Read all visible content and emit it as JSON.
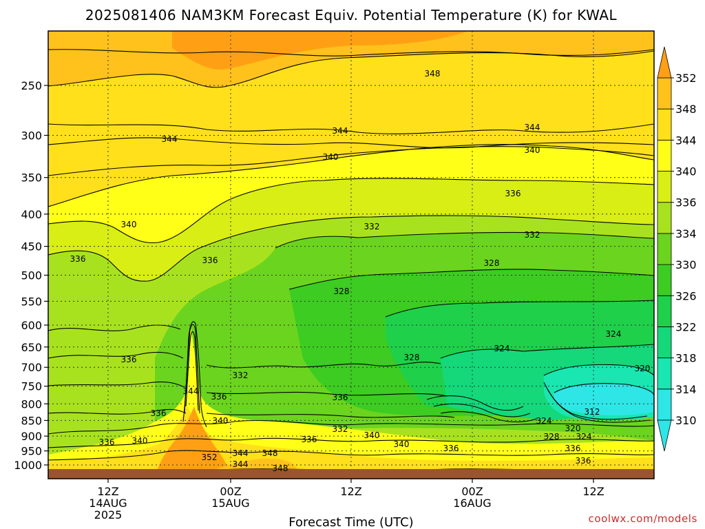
{
  "chart_data": {
    "type": "heatmap",
    "title": "2025081406 NAM3KM Forecast Equiv. Potential Temperature (K) for KWAL",
    "xlabel": "Forecast Time (UTC)",
    "ylabel": "",
    "y_scale": "log-pressure (inverted)",
    "y_ticks": [
      250,
      300,
      350,
      400,
      450,
      500,
      550,
      600,
      650,
      700,
      750,
      800,
      850,
      900,
      950,
      1000
    ],
    "x_ticks": [
      {
        "lines": [
          "12Z",
          "14AUG",
          "2025"
        ]
      },
      {
        "lines": [
          "00Z",
          "15AUG"
        ]
      },
      {
        "lines": [
          "12Z"
        ]
      },
      {
        "lines": [
          "00Z",
          "16AUG"
        ]
      },
      {
        "lines": [
          "12Z"
        ]
      }
    ],
    "colorbar": {
      "labels": [
        310,
        314,
        318,
        322,
        326,
        330,
        334,
        336,
        340,
        344,
        348,
        352
      ],
      "colors": [
        "#2ee6e6",
        "#19e6b0",
        "#14d87a",
        "#1fd04a",
        "#3ccc22",
        "#6bd41e",
        "#a8e21e",
        "#d8ee14",
        "#ffff18",
        "#ffe01a",
        "#ffc21c",
        "#ffa014"
      ],
      "extend": "both"
    },
    "grid": true,
    "contour_labels": [
      {
        "text": "348"
      },
      {
        "text": "344"
      },
      {
        "text": "344"
      },
      {
        "text": "344"
      },
      {
        "text": "340"
      },
      {
        "text": "340"
      },
      {
        "text": "340"
      },
      {
        "text": "336"
      },
      {
        "text": "336"
      },
      {
        "text": "336"
      },
      {
        "text": "336"
      },
      {
        "text": "332"
      },
      {
        "text": "332"
      },
      {
        "text": "332"
      },
      {
        "text": "328"
      },
      {
        "text": "328"
      },
      {
        "text": "328"
      },
      {
        "text": "324"
      },
      {
        "text": "324"
      },
      {
        "text": "320"
      },
      {
        "text": "344"
      },
      {
        "text": "336"
      },
      {
        "text": "336"
      },
      {
        "text": "336"
      },
      {
        "text": "336"
      },
      {
        "text": "340"
      },
      {
        "text": "336"
      },
      {
        "text": "332"
      },
      {
        "text": "340"
      },
      {
        "text": "340"
      },
      {
        "text": "336"
      },
      {
        "text": "324"
      },
      {
        "text": "320"
      },
      {
        "text": "312"
      },
      {
        "text": "328"
      },
      {
        "text": "324"
      },
      {
        "text": "336"
      },
      {
        "text": "340"
      },
      {
        "text": "352"
      },
      {
        "text": "344"
      },
      {
        "text": "348"
      },
      {
        "text": "344"
      },
      {
        "text": "348"
      },
      {
        "text": "336"
      }
    ],
    "surface_color": "#9a5530"
  },
  "credit": "coolwx.com/models"
}
